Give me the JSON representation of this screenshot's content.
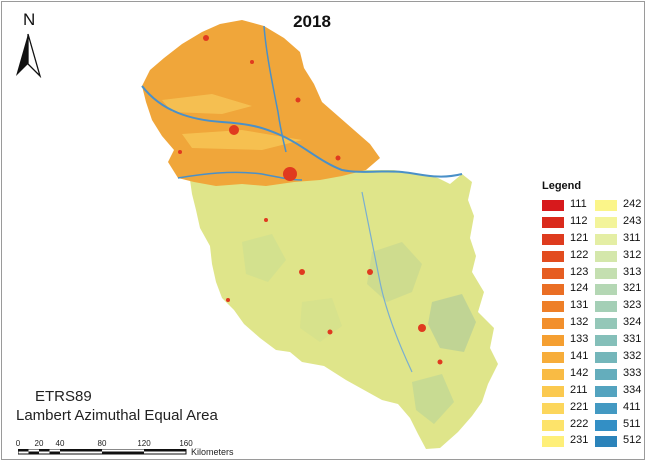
{
  "title": "2018",
  "north_letter": "N",
  "projection": {
    "line1": "ETRS89",
    "line2": "Lambert Azimuthal Equal Area"
  },
  "scale_bar": {
    "ticks": [
      "0",
      "20",
      "40",
      "80",
      "120",
      "160"
    ],
    "unit": "Kilometers"
  },
  "legend": {
    "title": "Legend",
    "items": [
      {
        "code": "111",
        "color": "#d7191c"
      },
      {
        "code": "112",
        "color": "#da2a1c"
      },
      {
        "code": "121",
        "color": "#de3b1e"
      },
      {
        "code": "122",
        "color": "#e24c1f"
      },
      {
        "code": "123",
        "color": "#e65d21"
      },
      {
        "code": "124",
        "color": "#ea6e24"
      },
      {
        "code": "131",
        "color": "#ee7f28"
      },
      {
        "code": "132",
        "color": "#f28f2c"
      },
      {
        "code": "133",
        "color": "#f59f31"
      },
      {
        "code": "141",
        "color": "#f7ad3a"
      },
      {
        "code": "142",
        "color": "#f9bb44"
      },
      {
        "code": "211",
        "color": "#fbc94f"
      },
      {
        "code": "221",
        "color": "#fcd65c"
      },
      {
        "code": "222",
        "color": "#fde36a"
      },
      {
        "code": "231",
        "color": "#feef79"
      },
      {
        "code": "242",
        "color": "#fbf589"
      },
      {
        "code": "243",
        "color": "#f3f49a"
      },
      {
        "code": "311",
        "color": "#e4eea4"
      },
      {
        "code": "312",
        "color": "#d4e7ab"
      },
      {
        "code": "313",
        "color": "#c4dfb0"
      },
      {
        "code": "321",
        "color": "#b4d7b4"
      },
      {
        "code": "323",
        "color": "#a4cfb6"
      },
      {
        "code": "324",
        "color": "#94c7b8"
      },
      {
        "code": "331",
        "color": "#84bfb9"
      },
      {
        "code": "332",
        "color": "#74b6ba"
      },
      {
        "code": "333",
        "color": "#64adbc"
      },
      {
        "code": "334",
        "color": "#53a3bf"
      },
      {
        "code": "411",
        "color": "#4399c2"
      },
      {
        "code": "511",
        "color": "#338fc5"
      },
      {
        "code": "512",
        "color": "#2b83ba"
      }
    ]
  },
  "map_colors": {
    "north_fill": "#f0a63a",
    "south_fill": "#dfe58a",
    "river": "#4a90c8",
    "urban": "#e03a1f"
  }
}
